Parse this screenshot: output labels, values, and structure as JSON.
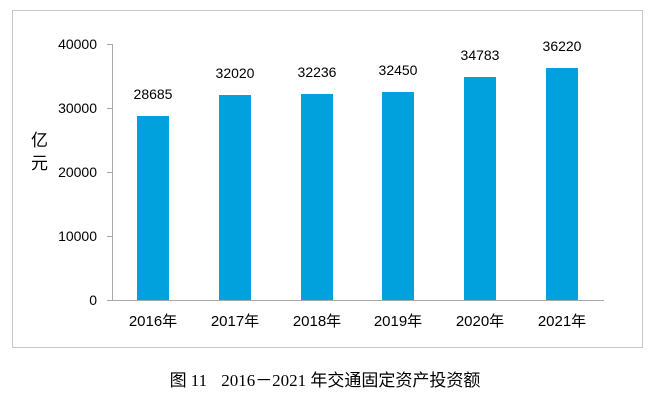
{
  "chart_data": {
    "type": "bar",
    "categories": [
      "2016年",
      "2017年",
      "2018年",
      "2019年",
      "2020年",
      "2021年"
    ],
    "values": [
      28685,
      32020,
      32236,
      32450,
      34783,
      36220
    ],
    "data_labels": [
      "28685",
      "32020",
      "32236",
      "32450",
      "34783",
      "36220"
    ],
    "title": "",
    "xlabel": "",
    "ylabel": "亿元",
    "ylim": [
      0,
      40000
    ],
    "ytick_step": 10000,
    "ytick_labels": [
      "0",
      "10000",
      "20000",
      "30000",
      "40000"
    ],
    "grid": false,
    "legend": "none",
    "bar_color": "#00a1dc",
    "axis_color": "#a9a9a9",
    "frame_border_color": "#c8c8c8",
    "text_color": "#000000"
  },
  "caption": {
    "prefix": "图 11",
    "text": "2016－2021 年交通固定资产投资额"
  }
}
